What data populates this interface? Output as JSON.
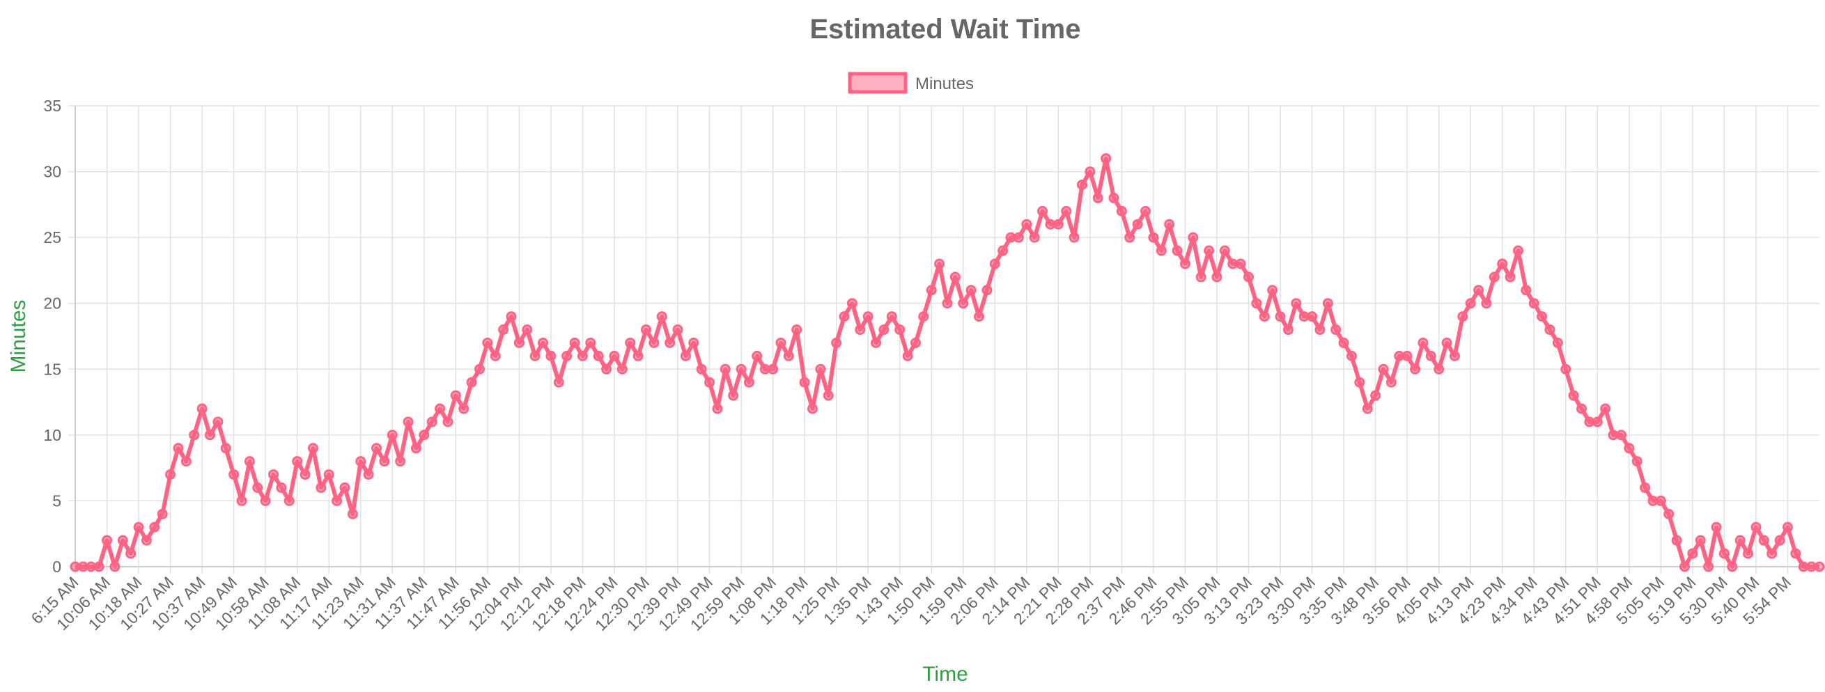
{
  "chart_data": {
    "type": "line",
    "title": "Estimated Wait Time",
    "xlabel": "Time",
    "ylabel": "Minutes",
    "categories": [
      "6:15 AM",
      null,
      null,
      null,
      "10:06 AM",
      null,
      null,
      null,
      "10:18 AM",
      null,
      null,
      null,
      "10:27 AM",
      null,
      null,
      null,
      "10:37 AM",
      null,
      null,
      null,
      "10:49 AM",
      null,
      null,
      null,
      "10:58 AM",
      null,
      null,
      null,
      "11:08 AM",
      null,
      null,
      null,
      "11:17 AM",
      null,
      null,
      null,
      "11:23 AM",
      null,
      null,
      null,
      "11:31 AM",
      null,
      null,
      null,
      "11:37 AM",
      null,
      null,
      null,
      "11:47 AM",
      null,
      null,
      null,
      "11:56 AM",
      null,
      null,
      null,
      "12:04 PM",
      null,
      null,
      null,
      "12:12 PM",
      null,
      null,
      null,
      "12:18 PM",
      null,
      null,
      null,
      "12:24 PM",
      null,
      null,
      null,
      "12:30 PM",
      null,
      null,
      null,
      "12:39 PM",
      null,
      null,
      null,
      "12:49 PM",
      null,
      null,
      null,
      "12:59 PM",
      null,
      null,
      null,
      "1:08 PM",
      null,
      null,
      null,
      "1:18 PM",
      null,
      null,
      null,
      "1:25 PM",
      null,
      null,
      null,
      "1:35 PM",
      null,
      null,
      null,
      "1:43 PM",
      null,
      null,
      null,
      "1:50 PM",
      null,
      null,
      null,
      "1:59 PM",
      null,
      null,
      null,
      "2:06 PM",
      null,
      null,
      null,
      "2:14 PM",
      null,
      null,
      null,
      "2:21 PM",
      null,
      null,
      null,
      "2:28 PM",
      null,
      null,
      null,
      "2:37 PM",
      null,
      null,
      null,
      "2:46 PM",
      null,
      null,
      null,
      "2:55 PM",
      null,
      null,
      null,
      "3:05 PM",
      null,
      null,
      null,
      "3:13 PM",
      null,
      null,
      null,
      "3:23 PM",
      null,
      null,
      null,
      "3:30 PM",
      null,
      null,
      null,
      "3:35 PM",
      null,
      null,
      null,
      "3:48 PM",
      null,
      null,
      null,
      "3:56 PM",
      null,
      null,
      null,
      "4:05 PM",
      null,
      null,
      null,
      "4:13 PM",
      null,
      null,
      null,
      "4:23 PM",
      null,
      null,
      null,
      "4:34 PM",
      null,
      null,
      null,
      "4:43 PM",
      null,
      null,
      null,
      "4:51 PM",
      null,
      null,
      null,
      "4:58 PM",
      null,
      null,
      null,
      "5:05 PM",
      null,
      null,
      null,
      "5:19 PM",
      null,
      null,
      null,
      "5:30 PM",
      null,
      null,
      null,
      "5:40 PM",
      null,
      null,
      null,
      "5:54 PM",
      null,
      null,
      null,
      null
    ],
    "series": [
      {
        "name": "Minutes",
        "color": "#ff6384",
        "values": [
          0,
          0,
          0,
          0,
          2,
          0,
          2,
          1,
          3,
          2,
          3,
          4,
          7,
          9,
          8,
          10,
          12,
          10,
          11,
          9,
          7,
          5,
          8,
          6,
          5,
          7,
          6,
          5,
          8,
          7,
          9,
          6,
          7,
          5,
          6,
          4,
          8,
          7,
          9,
          8,
          10,
          8,
          11,
          9,
          10,
          11,
          12,
          11,
          13,
          12,
          14,
          15,
          17,
          16,
          18,
          19,
          17,
          18,
          16,
          17,
          16,
          14,
          16,
          17,
          16,
          17,
          16,
          15,
          16,
          15,
          17,
          16,
          18,
          17,
          19,
          17,
          18,
          16,
          17,
          15,
          14,
          12,
          15,
          13,
          15,
          14,
          16,
          15,
          15,
          17,
          16,
          18,
          14,
          12,
          15,
          13,
          17,
          19,
          20,
          18,
          19,
          17,
          18,
          19,
          18,
          16,
          17,
          19,
          21,
          23,
          20,
          22,
          20,
          21,
          19,
          21,
          23,
          24,
          25,
          25,
          26,
          25,
          27,
          26,
          26,
          27,
          25,
          29,
          30,
          28,
          31,
          28,
          27,
          25,
          26,
          27,
          25,
          24,
          26,
          24,
          23,
          25,
          22,
          24,
          22,
          24,
          23,
          23,
          22,
          20,
          19,
          21,
          19,
          18,
          20,
          19,
          19,
          18,
          20,
          18,
          17,
          16,
          14,
          12,
          13,
          15,
          14,
          16,
          16,
          15,
          17,
          16,
          15,
          17,
          16,
          19,
          20,
          21,
          20,
          22,
          23,
          22,
          24,
          21,
          20,
          19,
          18,
          17,
          15,
          13,
          12,
          11,
          11,
          12,
          10,
          10,
          9,
          8,
          6,
          5,
          5,
          4,
          2,
          0,
          1,
          2,
          0,
          3,
          1,
          0,
          2,
          1,
          3,
          2,
          1,
          2,
          3,
          1,
          0,
          0,
          0
        ]
      }
    ],
    "ylim": [
      0,
      35
    ],
    "yticks": [
      0,
      5,
      10,
      15,
      20,
      25,
      30,
      35
    ],
    "grid": true,
    "legend": "top"
  }
}
